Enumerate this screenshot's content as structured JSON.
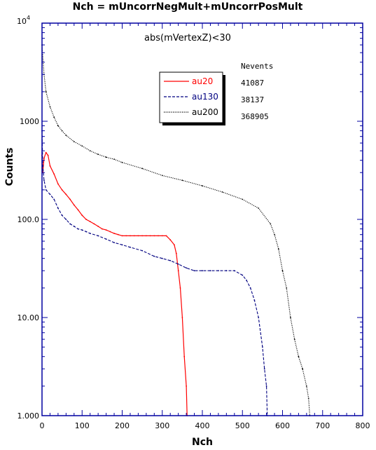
{
  "chart_data": {
    "type": "line",
    "title": "Nch = mUncorrNegMult+mUncorrPosMult",
    "annotation": "abs(mVertexZ)<30",
    "xlabel": "Nch",
    "ylabel": "Counts",
    "xlim": [
      0,
      800
    ],
    "ylim": [
      1,
      10000
    ],
    "yscale": "log",
    "x_ticks": [
      "0",
      "100",
      "200",
      "300",
      "400",
      "500",
      "600",
      "700",
      "800"
    ],
    "y_ticks": [
      "1.000",
      "10.00",
      "100.0",
      "1000"
    ],
    "y_top_tick": {
      "base": "10",
      "exponent": "4"
    },
    "legend_position": "upper-center",
    "stats_header": "Nevents",
    "colors": {
      "au20": "#ff0000",
      "au130": "#000080",
      "au200": "#000000",
      "frame": "#0000a0"
    },
    "series": [
      {
        "name": "au20",
        "nevents": "41087",
        "style": "solid",
        "x": [
          0,
          2,
          5,
          10,
          15,
          20,
          30,
          40,
          50,
          60,
          70,
          80,
          90,
          100,
          110,
          120,
          130,
          140,
          150,
          160,
          170,
          180,
          190,
          200,
          210,
          220,
          230,
          240,
          250,
          260,
          270,
          280,
          290,
          300,
          310,
          320,
          330,
          335,
          340,
          345,
          350,
          355,
          360,
          362
        ],
        "y": [
          450,
          300,
          420,
          480,
          450,
          350,
          290,
          230,
          200,
          180,
          160,
          140,
          125,
          110,
          100,
          95,
          90,
          85,
          80,
          78,
          75,
          72,
          70,
          68,
          68,
          68,
          68,
          68,
          68,
          68,
          68,
          68,
          68,
          68,
          68,
          62,
          55,
          45,
          30,
          20,
          10,
          4,
          2,
          1
        ]
      },
      {
        "name": "au130",
        "nevents": "38137",
        "style": "dashed",
        "x": [
          0,
          2,
          5,
          10,
          20,
          30,
          40,
          50,
          60,
          70,
          80,
          90,
          100,
          110,
          120,
          140,
          160,
          180,
          200,
          220,
          250,
          280,
          300,
          320,
          340,
          360,
          380,
          400,
          420,
          440,
          460,
          480,
          500,
          510,
          520,
          530,
          540,
          550,
          555,
          560,
          562
        ],
        "y": [
          800,
          350,
          250,
          200,
          180,
          160,
          130,
          110,
          100,
          90,
          85,
          80,
          78,
          75,
          72,
          68,
          63,
          58,
          55,
          52,
          48,
          42,
          40,
          38,
          35,
          32,
          30,
          30,
          30,
          30,
          30,
          30,
          27,
          24,
          20,
          15,
          10,
          5,
          3,
          2,
          1
        ]
      },
      {
        "name": "au200",
        "nevents": "368905",
        "style": "dotted",
        "x": [
          0,
          5,
          10,
          20,
          30,
          40,
          50,
          60,
          80,
          100,
          120,
          140,
          160,
          180,
          200,
          250,
          300,
          350,
          400,
          450,
          500,
          540,
          570,
          580,
          590,
          600,
          610,
          620,
          630,
          640,
          650,
          660,
          665,
          668
        ],
        "y": [
          6000,
          3000,
          2000,
          1400,
          1100,
          900,
          800,
          720,
          620,
          560,
          500,
          460,
          430,
          410,
          380,
          330,
          280,
          250,
          220,
          190,
          160,
          130,
          90,
          70,
          50,
          30,
          20,
          10,
          6,
          4,
          3,
          2,
          1.5,
          1
        ]
      }
    ]
  }
}
